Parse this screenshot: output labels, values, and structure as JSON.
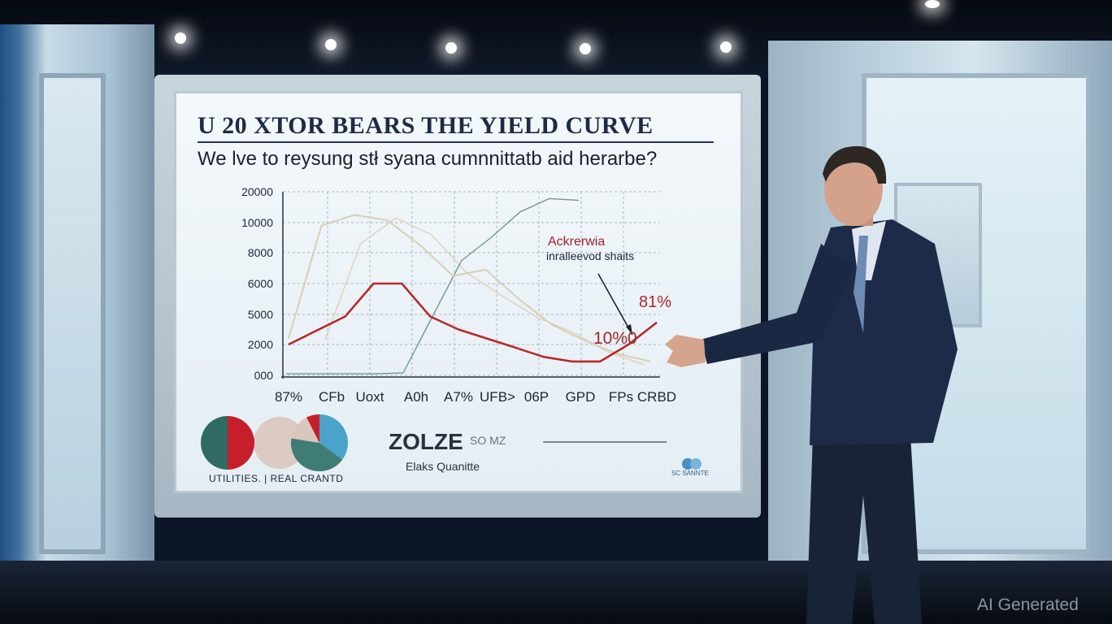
{
  "screen": {
    "title": "U 20 XTOR BEARS THE  YIELD CURVE",
    "subtitle": "We lve to reysung stł syana cumnnittatb aid herarbe?"
  },
  "annotations": {
    "label_red": "Ackrerwia",
    "label_dark": "inralleevod shaits",
    "pct_high": "81%",
    "pct_low": "10%0"
  },
  "chart_data": {
    "type": "line",
    "y_tick_labels": [
      "20000",
      "10000",
      "8000",
      "6000",
      "5000",
      "2000",
      "000"
    ],
    "x_tick_labels": [
      "87%",
      "CFb",
      "Uoxt",
      "A0h",
      "A7%",
      "UFB>",
      "06P",
      "GPD",
      "FPs",
      "CRBD"
    ],
    "series_colors": [
      "#b52a2a",
      "#d8cfb4",
      "#6f9a8e",
      "#e0d2c2"
    ],
    "series": [
      {
        "values": [
          2000,
          3400,
          4800,
          6000,
          6000,
          4800,
          3500,
          2600,
          1800,
          1200,
          900,
          900,
          2000,
          4200
        ]
      },
      {
        "values": [
          2600,
          9800,
          12500,
          10800,
          8500,
          6500,
          6900,
          5500,
          4000,
          2400,
          1400,
          900
        ]
      },
      {
        "values": [
          100,
          100,
          100,
          100,
          150,
          4800,
          7500,
          9000,
          13500,
          17800,
          17200
        ]
      },
      {
        "values": [
          2500,
          8600,
          11500,
          9200,
          6700,
          5600,
          4700,
          3200,
          1500,
          700
        ]
      }
    ]
  },
  "pies": {
    "caption": "UTILITIES.  |  REAL CRANTD",
    "colors": [
      "#2f6b63",
      "#c61f2b",
      "#d9c7be",
      "#4aa3c8",
      "#3f7c73"
    ]
  },
  "bottom": {
    "logo_text": "ZOLZE",
    "logo_suffix": "SO MZ",
    "sub_text": "Elaks Quanitte",
    "corner_text": "SC SANNTE"
  },
  "watermark": "AI Generated"
}
